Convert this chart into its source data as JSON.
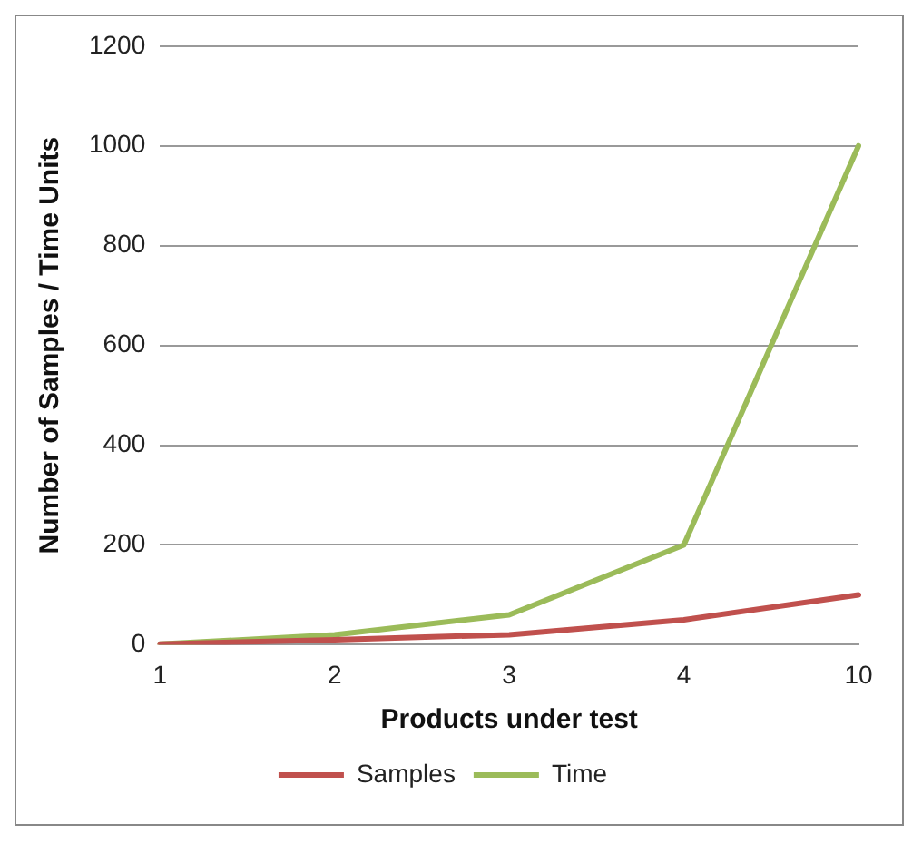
{
  "chart_data": {
    "type": "line",
    "xlabel": "Products under test",
    "ylabel": "Number of Samples / Time Units",
    "categories": [
      "1",
      "2",
      "3",
      "4",
      "10"
    ],
    "series": [
      {
        "name": "Samples",
        "color": "#c0504d",
        "values": [
          1,
          10,
          20,
          50,
          100
        ]
      },
      {
        "name": "Time",
        "color": "#9bbb59",
        "values": [
          1,
          20,
          60,
          200,
          1000
        ]
      }
    ],
    "ylim": [
      0,
      1200
    ],
    "yticks": [
      0,
      200,
      400,
      600,
      800,
      1000,
      1200
    ],
    "grid": "y",
    "legend": "bottom",
    "marker": "none",
    "line_style": "solid"
  }
}
